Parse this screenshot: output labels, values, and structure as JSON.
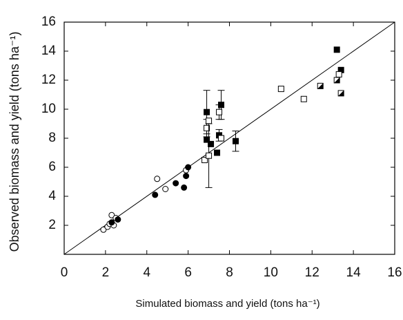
{
  "chart_data": {
    "type": "scatter",
    "xlabel": "Simulated biomass and yield (tons ha⁻¹)",
    "ylabel": "Observed biomass and yield (tons ha⁻¹)",
    "xlim": [
      0,
      16
    ],
    "ylim": [
      0,
      16
    ],
    "xticks": [
      0,
      2,
      4,
      6,
      8,
      10,
      12,
      14,
      16
    ],
    "yticks": [
      2,
      4,
      6,
      8,
      10,
      12,
      14,
      16
    ],
    "grid": false,
    "series": [
      {
        "marker": "circle",
        "fill": "open",
        "color": "#000000",
        "x": [
          1.9,
          2.1,
          2.2,
          2.3,
          2.4,
          2.5,
          4.5,
          4.9,
          5.9
        ],
        "values": [
          1.7,
          1.9,
          2.1,
          2.7,
          2.0,
          2.5,
          5.2,
          4.5,
          5.8
        ]
      },
      {
        "marker": "circle",
        "fill": "filled",
        "color": "#000000",
        "x": [
          2.3,
          2.6,
          4.4,
          5.4,
          5.8,
          5.9,
          6.0
        ],
        "values": [
          2.2,
          2.4,
          4.1,
          4.9,
          4.6,
          5.4,
          6.0
        ]
      },
      {
        "marker": "square",
        "fill": "filled",
        "color": "#000000",
        "x": [
          6.9,
          6.9,
          7.1,
          7.4,
          7.5,
          7.6,
          8.3,
          13.2,
          13.4
        ],
        "values": [
          9.8,
          7.9,
          7.6,
          7.0,
          8.2,
          10.3,
          7.8,
          14.1,
          12.7
        ],
        "errors": [
          1.5,
          null,
          null,
          null,
          0.4,
          1.0,
          0.7,
          null,
          null
        ]
      },
      {
        "marker": "square",
        "fill": "open",
        "color": "#000000",
        "x": [
          6.8,
          6.9,
          7.0,
          7.0,
          7.5,
          7.6,
          10.5,
          11.6,
          13.3
        ],
        "values": [
          6.5,
          8.7,
          9.2,
          6.8,
          9.8,
          8.0,
          11.4,
          10.7,
          12.4
        ],
        "errors": [
          null,
          0.6,
          null,
          2.2,
          0.5,
          null,
          null,
          null,
          null
        ]
      },
      {
        "marker": "square",
        "fill": "half",
        "color": "#000000",
        "x": [
          12.4,
          13.2,
          13.4
        ],
        "values": [
          11.6,
          12.0,
          11.1
        ]
      }
    ]
  }
}
